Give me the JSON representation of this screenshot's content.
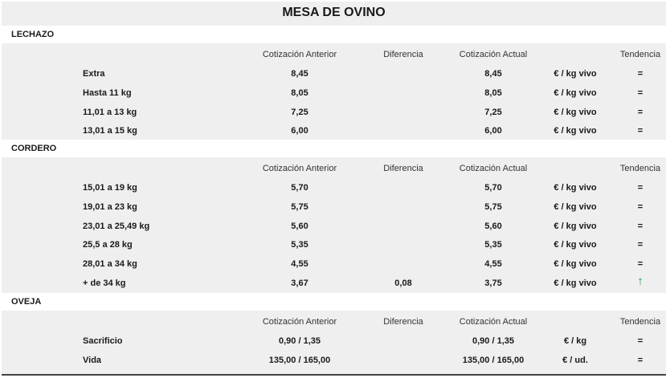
{
  "title": "MESA DE OVINO",
  "headers": {
    "prev": "Cotización Anterior",
    "diff": "Diferencia",
    "curr": "Cotización Actual",
    "trend": "Tendencia"
  },
  "colors": {
    "trend_up": "#2a9d4a"
  },
  "sections": [
    {
      "name": "LECHAZO",
      "rows": [
        {
          "label": "Extra",
          "prev": "8,45",
          "diff": "",
          "curr": "8,45",
          "unit": "€ / kg vivo",
          "trend": "=",
          "trend_icon": "equal"
        },
        {
          "label": "Hasta 11 kg",
          "prev": "8,05",
          "diff": "",
          "curr": "8,05",
          "unit": "€ / kg vivo",
          "trend": "=",
          "trend_icon": "equal"
        },
        {
          "label": "11,01 a 13 kg",
          "prev": "7,25",
          "diff": "",
          "curr": "7,25",
          "unit": "€ / kg vivo",
          "trend": "=",
          "trend_icon": "equal"
        },
        {
          "label": "13,01 a 15 kg",
          "prev": "6,00",
          "diff": "",
          "curr": "6,00",
          "unit": "€ / kg vivo",
          "trend": "=",
          "trend_icon": "equal"
        }
      ]
    },
    {
      "name": "CORDERO",
      "rows": [
        {
          "label": "15,01 a 19 kg",
          "prev": "5,70",
          "diff": "",
          "curr": "5,70",
          "unit": "€ / kg vivo",
          "trend": "=",
          "trend_icon": "equal"
        },
        {
          "label": "19,01 a 23 kg",
          "prev": "5,75",
          "diff": "",
          "curr": "5,75",
          "unit": "€ / kg vivo",
          "trend": "=",
          "trend_icon": "equal"
        },
        {
          "label": "23,01 a 25,49 kg",
          "prev": "5,60",
          "diff": "",
          "curr": "5,60",
          "unit": "€ / kg vivo",
          "trend": "=",
          "trend_icon": "equal"
        },
        {
          "label": "25,5 a 28 kg",
          "prev": "5,35",
          "diff": "",
          "curr": "5,35",
          "unit": "€ / kg vivo",
          "trend": "=",
          "trend_icon": "equal"
        },
        {
          "label": "28,01 a 34 kg",
          "prev": "4,55",
          "diff": "",
          "curr": "4,55",
          "unit": "€ / kg vivo",
          "trend": "=",
          "trend_icon": "equal"
        },
        {
          "label": "+ de 34 kg",
          "prev": "3,67",
          "diff": "0,08",
          "curr": "3,75",
          "unit": "€ / kg vivo",
          "trend": "↑",
          "trend_icon": "arrow-up"
        }
      ]
    },
    {
      "name": "OVEJA",
      "rows": [
        {
          "label": "Sacrificio",
          "prev": "0,90 / 1,35",
          "diff": "",
          "curr": "0,90 / 1,35",
          "unit": "€ / kg",
          "trend": "=",
          "trend_icon": "equal"
        },
        {
          "label": "Vida",
          "prev": "135,00 / 165,00",
          "diff": "",
          "curr": "135,00 / 165,00",
          "unit": "€ / ud.",
          "trend": "=",
          "trend_icon": "equal"
        }
      ]
    }
  ]
}
